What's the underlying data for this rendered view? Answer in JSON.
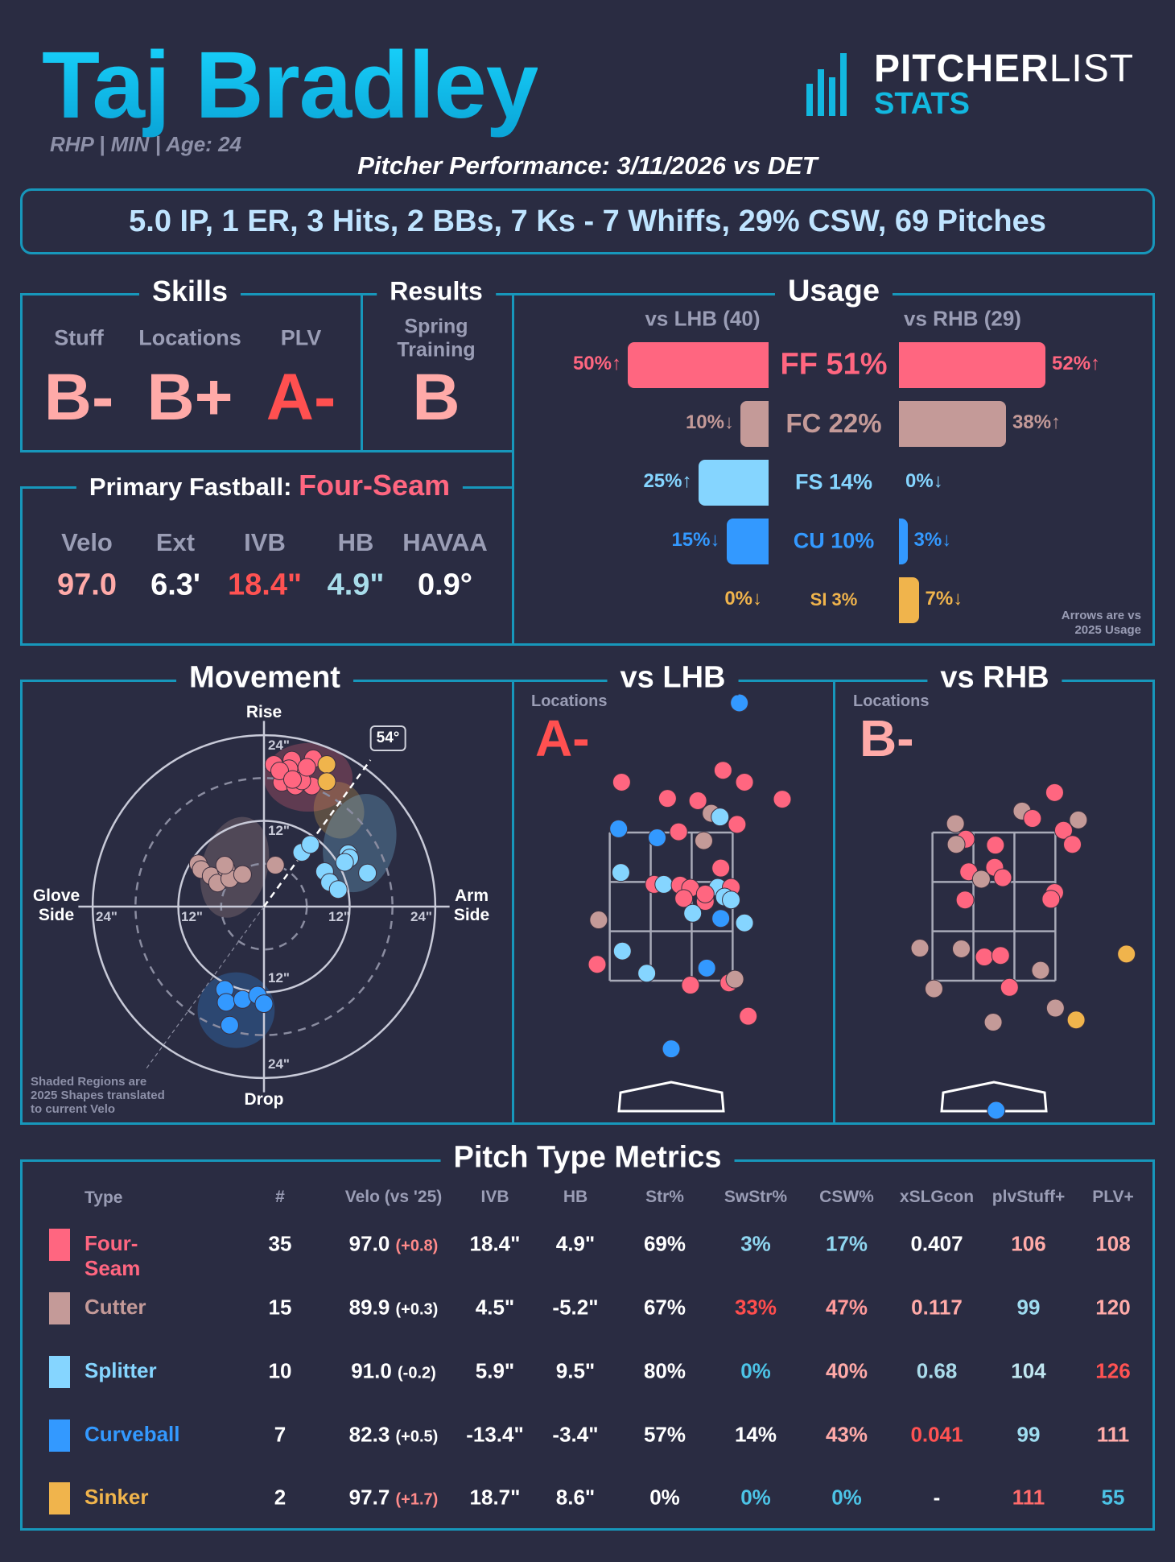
{
  "header": {
    "name": "Taj Bradley",
    "subtitle": "RHP | MIN | Age: 24",
    "performance": "Pitcher Performance: 3/11/2026 vs DET",
    "summary": "5.0 IP, 1 ER, 3 Hits, 2 BBs, 7 Ks - 7 Whiffs, 29% CSW, 69 Pitches"
  },
  "logo": {
    "word1": "PITCHER",
    "word2": "LIST",
    "word3": "STATS"
  },
  "colors": {
    "FF": "#ff6680",
    "FC": "#c49a98",
    "FS": "#85d5ff",
    "CU": "#3399ff",
    "SI": "#f0b44c",
    "border": "#1797bb",
    "gradeLight": "#ffaaa8",
    "gradeRed": "#ff5050"
  },
  "skills": {
    "title": "Skills",
    "items": [
      {
        "label": "Stuff",
        "grade": "B-",
        "color": "#ffaaa8"
      },
      {
        "label": "Locations",
        "grade": "B+",
        "color": "#ffaaa8"
      },
      {
        "label": "PLV",
        "grade": "A-",
        "color": "#ff5050"
      }
    ]
  },
  "results": {
    "title": "Results",
    "label1": "Spring",
    "label2": "Training",
    "grade": "B",
    "color": "#ffaaa8"
  },
  "fastball": {
    "title_prefix": "Primary Fastball:",
    "title_pitch": "Four-Seam",
    "metrics": [
      {
        "label": "Velo",
        "value": "97.0",
        "color": "#ffaaa8"
      },
      {
        "label": "Ext",
        "value": "6.3'",
        "color": "#ffffff"
      },
      {
        "label": "IVB",
        "value": "18.4\"",
        "color": "#ff5252"
      },
      {
        "label": "HB",
        "value": "4.9\"",
        "color": "#a8dcea"
      },
      {
        "label": "HAVAA",
        "value": "0.9°",
        "color": "#ffffff"
      }
    ]
  },
  "usage": {
    "title": "Usage",
    "lhb_header": "vs LHB (40)",
    "rhb_header": "vs RHB (29)",
    "note1": "Arrows are vs",
    "note2": "2025 Usage",
    "rows": [
      {
        "code": "FF",
        "center": "FF 51%",
        "lhb": 50,
        "lhb_label": "50%↑",
        "rhb": 52,
        "rhb_label": "52%↑"
      },
      {
        "code": "FC",
        "center": "FC 22%",
        "lhb": 10,
        "lhb_label": "10%↓",
        "rhb": 38,
        "rhb_label": "38%↑"
      },
      {
        "code": "FS",
        "center": "FS 14%",
        "lhb": 25,
        "lhb_label": "25%↑",
        "rhb": 0,
        "rhb_label": "0%↓"
      },
      {
        "code": "CU",
        "center": "CU 10%",
        "lhb": 15,
        "lhb_label": "15%↓",
        "rhb": 3,
        "rhb_label": "3%↓"
      },
      {
        "code": "SI",
        "center": "SI 3%",
        "lhb": 0,
        "lhb_label": "0%↓",
        "rhb": 7,
        "rhb_label": "7%↓"
      }
    ]
  },
  "movement": {
    "title": "Movement",
    "rise": "Rise",
    "drop": "Drop",
    "glove1": "Glove",
    "glove2": "Side",
    "arm1": "Arm",
    "arm2": "Side",
    "tick12": "12\"",
    "tick24": "24\"",
    "angle": "54°",
    "note": [
      "Shaded Regions are",
      "2025 Shapes translated",
      "to current Velo"
    ]
  },
  "lhb": {
    "title": "vs LHB",
    "label": "Locations",
    "grade": "A-",
    "color": "#ff5050"
  },
  "rhb": {
    "title": "vs RHB",
    "label": "Locations",
    "grade": "B-",
    "color": "#ffaaa8"
  },
  "table": {
    "title": "Pitch Type Metrics",
    "headers": [
      "Type",
      "#",
      "Velo (vs '25)",
      "IVB",
      "HB",
      "Str%",
      "SwStr%",
      "CSW%",
      "xSLGcon",
      "plvStuff+",
      "PLV+"
    ],
    "rows": [
      {
        "code": "FF",
        "type": "Four-Seam",
        "n": "35",
        "velo": "97.0",
        "delta": "(+0.8)",
        "delta_color": "#ff8a8a",
        "ivb": "18.4\"",
        "hb": "4.9\"",
        "str": "69%",
        "swstr": [
          "3%",
          "#8fd6f0"
        ],
        "csw": [
          "17%",
          "#8fd6f0"
        ],
        "xslg": [
          "0.407",
          "#ffffff"
        ],
        "stuff": [
          "106",
          "#ffaaa8"
        ],
        "plv": [
          "108",
          "#ffaaa8"
        ]
      },
      {
        "code": "FC",
        "type": "Cutter",
        "n": "15",
        "velo": "89.9",
        "delta": "(+0.3)",
        "delta_color": "#ffffff",
        "ivb": "4.5\"",
        "hb": "-5.2\"",
        "str": "67%",
        "swstr": [
          "33%",
          "#ff4d4d"
        ],
        "csw": [
          "47%",
          "#ff9a9a"
        ],
        "xslg": [
          "0.117",
          "#ffaaa8"
        ],
        "stuff": [
          "99",
          "#9fdcf0"
        ],
        "plv": [
          "120",
          "#ffaaa8"
        ]
      },
      {
        "code": "FS",
        "type": "Splitter",
        "n": "10",
        "velo": "91.0",
        "delta": "(-0.2)",
        "delta_color": "#ffffff",
        "ivb": "5.9\"",
        "hb": "9.5\"",
        "str": "80%",
        "swstr": [
          "0%",
          "#4cc3e6"
        ],
        "csw": [
          "40%",
          "#ffaaa8"
        ],
        "xslg": [
          "0.68",
          "#aadbea"
        ],
        "stuff": [
          "104",
          "#c0e6f0"
        ],
        "plv": [
          "126",
          "#ff5252"
        ]
      },
      {
        "code": "CU",
        "type": "Curveball",
        "n": "7",
        "velo": "82.3",
        "delta": "(+0.5)",
        "delta_color": "#ffffff",
        "ivb": "-13.4\"",
        "hb": "-3.4\"",
        "str": "57%",
        "swstr": [
          "14%",
          "#ffffff"
        ],
        "csw": [
          "43%",
          "#ffaaa8"
        ],
        "xslg": [
          "0.041",
          "#ff5252"
        ],
        "stuff": [
          "99",
          "#9fdcf0"
        ],
        "plv": [
          "111",
          "#ffaaa8"
        ]
      },
      {
        "code": "SI",
        "type": "Sinker",
        "n": "2",
        "velo": "97.7",
        "delta": "(+1.7)",
        "delta_color": "#ff8a8a",
        "ivb": "18.7\"",
        "hb": "8.6\"",
        "str": "0%",
        "swstr": [
          "0%",
          "#4cc3e6"
        ],
        "csw": [
          "0%",
          "#4cc3e6"
        ],
        "xslg": [
          "-",
          "#ffffff"
        ],
        "stuff": [
          "111",
          "#ff6b6b"
        ],
        "plv": [
          "55",
          "#4cc3e6"
        ]
      }
    ]
  },
  "chart_data": [
    {
      "type": "scatter",
      "title": "Movement",
      "xlabel": "HB (in)",
      "ylabel": "IVB (in)",
      "xlim": [
        -24,
        24
      ],
      "ylim": [
        -24,
        24
      ],
      "arm_angle_deg": 54,
      "regions_2025": [
        {
          "code": "FF",
          "cx": 6.2,
          "cy": 18.1,
          "rx": 6.2,
          "ry": 4.8,
          "rot": 0
        },
        {
          "code": "SI",
          "cx": 10.5,
          "cy": 13.5,
          "rx": 3.5,
          "ry": 4.0,
          "rot": -15
        },
        {
          "code": "FS",
          "cx": 13.4,
          "cy": 8.9,
          "rx": 5.0,
          "ry": 7.0,
          "rot": 15
        },
        {
          "code": "FC",
          "cx": -4.1,
          "cy": 5.5,
          "rx": 4.6,
          "ry": 7.2,
          "rot": 15
        },
        {
          "code": "CU",
          "cx": -3.9,
          "cy": -14.5,
          "rx": 5.4,
          "ry": 5.3,
          "rot": 0
        }
      ],
      "points": [
        [
          "FF",
          1.4,
          19.9
        ],
        [
          "FF",
          3.9,
          20.5
        ],
        [
          "FF",
          6.9,
          20.7
        ],
        [
          "FF",
          3.0,
          18.6
        ],
        [
          "FF",
          5.3,
          18.2
        ],
        [
          "FF",
          2.5,
          17.4
        ],
        [
          "FF",
          4.4,
          16.9
        ],
        [
          "FF",
          6.7,
          16.9
        ],
        [
          "FF",
          5.3,
          17.6
        ],
        [
          "FF",
          3.5,
          19.3
        ],
        [
          "FF",
          2.2,
          19.0
        ],
        [
          "FF",
          6.0,
          19.5
        ],
        [
          "FF",
          4.0,
          17.8
        ],
        [
          "SI",
          8.8,
          19.9
        ],
        [
          "SI",
          8.8,
          17.5
        ],
        [
          "FC",
          -9.2,
          6.0
        ],
        [
          "FC",
          -8.8,
          5.2
        ],
        [
          "FC",
          -7.4,
          4.3
        ],
        [
          "FC",
          -6.5,
          3.3
        ],
        [
          "FC",
          -5.3,
          5.3
        ],
        [
          "FC",
          -4.8,
          3.9
        ],
        [
          "FC",
          -3.0,
          4.5
        ],
        [
          "FC",
          -5.5,
          5.8
        ],
        [
          "FC",
          1.6,
          5.8
        ],
        [
          "FS",
          5.3,
          7.6
        ],
        [
          "FS",
          6.5,
          8.7
        ],
        [
          "FS",
          8.5,
          4.9
        ],
        [
          "FS",
          9.2,
          3.4
        ],
        [
          "FS",
          10.4,
          2.4
        ],
        [
          "FS",
          11.8,
          7.4
        ],
        [
          "FS",
          12.0,
          6.8
        ],
        [
          "FS",
          11.3,
          6.2
        ],
        [
          "FS",
          14.5,
          4.7
        ],
        [
          "CU",
          -5.5,
          -11.6
        ],
        [
          "CU",
          -5.3,
          -13.4
        ],
        [
          "CU",
          -3.0,
          -13.0
        ],
        [
          "CU",
          -0.9,
          -12.4
        ],
        [
          "CU",
          0.0,
          -13.6
        ],
        [
          "CU",
          -4.8,
          -16.6
        ]
      ]
    },
    {
      "type": "scatter",
      "title": "vs LHB Locations",
      "xlabel": "plate_x (ft)",
      "ylabel": "plate_z (ft)",
      "zone": {
        "x": [
          -0.83,
          0.83
        ],
        "z": [
          1.5,
          3.5
        ]
      },
      "points": [
        [
          "CU",
          0.92,
          5.25
        ],
        [
          "FF",
          -0.67,
          4.18
        ],
        [
          "FF",
          0.7,
          4.34
        ],
        [
          "FF",
          0.99,
          4.18
        ],
        [
          "FF",
          -0.05,
          3.96
        ],
        [
          "FF",
          0.36,
          3.93
        ],
        [
          "FF",
          1.5,
          3.95
        ],
        [
          "FC",
          0.54,
          3.76
        ],
        [
          "FS",
          0.66,
          3.71
        ],
        [
          "FF",
          0.89,
          3.61
        ],
        [
          "CU",
          -0.71,
          3.55
        ],
        [
          "CU",
          -0.19,
          3.43
        ],
        [
          "FF",
          0.1,
          3.51
        ],
        [
          "FC",
          0.44,
          3.39
        ],
        [
          "FS",
          -0.68,
          2.96
        ],
        [
          "FF",
          0.67,
          3.02
        ],
        [
          "FF",
          -0.23,
          2.8
        ],
        [
          "FS",
          -0.1,
          2.8
        ],
        [
          "FF",
          0.12,
          2.79
        ],
        [
          "FF",
          0.26,
          2.75
        ],
        [
          "FS",
          0.63,
          2.76
        ],
        [
          "FF",
          0.81,
          2.76
        ],
        [
          "FF",
          0.17,
          2.61
        ],
        [
          "FF",
          0.46,
          2.57
        ],
        [
          "FF",
          0.46,
          2.67
        ],
        [
          "FS",
          0.72,
          2.63
        ],
        [
          "FS",
          0.81,
          2.59
        ],
        [
          "FS",
          0.29,
          2.41
        ],
        [
          "CU",
          0.67,
          2.34
        ],
        [
          "FS",
          0.99,
          2.28
        ],
        [
          "FC",
          -0.98,
          2.32
        ],
        [
          "FS",
          -0.66,
          1.9
        ],
        [
          "FF",
          -1.0,
          1.72
        ],
        [
          "FS",
          -0.33,
          1.6
        ],
        [
          "CU",
          0.48,
          1.67
        ],
        [
          "FF",
          0.26,
          1.44
        ],
        [
          "FF",
          0.78,
          1.47
        ],
        [
          "FC",
          0.86,
          1.52
        ],
        [
          "FF",
          1.04,
          1.02
        ],
        [
          "CU",
          0.0,
          0.58
        ]
      ]
    },
    {
      "type": "scatter",
      "title": "vs RHB Locations",
      "xlabel": "plate_x (ft)",
      "ylabel": "plate_z (ft)",
      "zone": {
        "x": [
          -0.83,
          0.83
        ],
        "z": [
          1.5,
          3.5
        ]
      },
      "points": [
        [
          "FF",
          0.82,
          4.04
        ],
        [
          "FC",
          0.38,
          3.79
        ],
        [
          "FF",
          0.52,
          3.69
        ],
        [
          "FC",
          -0.52,
          3.62
        ],
        [
          "FC",
          1.14,
          3.67
        ],
        [
          "FF",
          0.94,
          3.53
        ],
        [
          "FF",
          1.06,
          3.34
        ],
        [
          "FF",
          -0.38,
          3.41
        ],
        [
          "FC",
          -0.51,
          3.34
        ],
        [
          "FF",
          0.02,
          3.33
        ],
        [
          "FF",
          -0.34,
          2.97
        ],
        [
          "FF",
          0.01,
          3.03
        ],
        [
          "FF",
          0.12,
          2.89
        ],
        [
          "FC",
          -0.17,
          2.87
        ],
        [
          "FF",
          -0.39,
          2.59
        ],
        [
          "FF",
          0.82,
          2.69
        ],
        [
          "FF",
          0.77,
          2.6
        ],
        [
          "FC",
          -1.0,
          1.94
        ],
        [
          "FC",
          -0.44,
          1.93
        ],
        [
          "FF",
          -0.13,
          1.82
        ],
        [
          "FF",
          0.09,
          1.84
        ],
        [
          "FC",
          0.63,
          1.64
        ],
        [
          "SI",
          1.79,
          1.86
        ],
        [
          "FC",
          -0.81,
          1.39
        ],
        [
          "FF",
          0.21,
          1.41
        ],
        [
          "FC",
          0.83,
          1.13
        ],
        [
          "SI",
          1.11,
          0.97
        ],
        [
          "FC",
          -0.01,
          0.94
        ],
        [
          "CU",
          0.03,
          -0.25
        ]
      ]
    }
  ]
}
